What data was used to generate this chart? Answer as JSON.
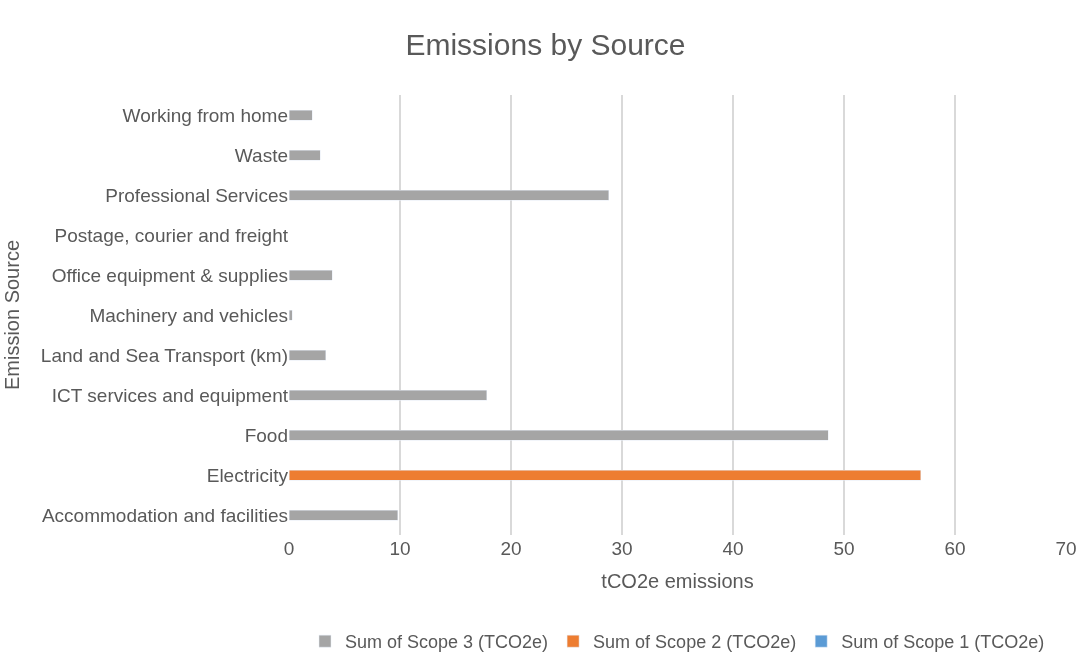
{
  "chart_data": {
    "type": "bar",
    "orientation": "horizontal",
    "stacked": true,
    "title": "Emissions by Source",
    "xlabel": "tCO2e emissions",
    "ylabel": "Emission Source",
    "categories": [
      "Working from home",
      "Waste",
      "Professional Services",
      "Postage, courier and freight",
      "Office equipment & supplies",
      "Machinery and vehicles",
      "Land and Sea Transport (km)",
      "ICT services and equipment",
      "Food",
      "Electricity",
      "Accommodation and facilities"
    ],
    "series": [
      {
        "name": "Sum of Scope 3 (TCO2e)",
        "color": "#a5a5a5",
        "values": [
          2.1,
          2.8,
          28.8,
          null,
          3.9,
          0.3,
          3.3,
          17.8,
          48.6,
          null,
          9.8
        ]
      },
      {
        "name": "Sum of Scope 2 (TCO2e)",
        "color": "#ed7d31",
        "values": [
          null,
          null,
          null,
          null,
          null,
          null,
          null,
          null,
          null,
          56.9,
          null
        ]
      },
      {
        "name": "Sum of Scope 1 (TCO2e)",
        "color": "#5b9bd5",
        "values": [
          null,
          null,
          null,
          null,
          null,
          null,
          null,
          null,
          null,
          null,
          null
        ]
      }
    ],
    "xlim": [
      0,
      70
    ],
    "xticks": [
      0,
      10,
      20,
      30,
      40,
      50,
      60,
      70
    ],
    "grid": "x",
    "legend": "bottom"
  }
}
